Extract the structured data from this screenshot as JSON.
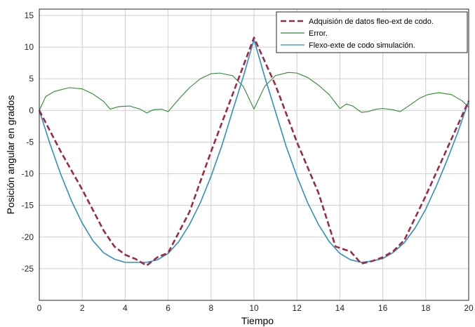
{
  "chart_data": {
    "type": "line",
    "xlabel": "Tiempo",
    "ylabel": "Posición angular en grados",
    "xlim": [
      0,
      20
    ],
    "ylim": [
      -30,
      16
    ],
    "xticks": [
      0,
      2,
      4,
      6,
      8,
      10,
      12,
      14,
      16,
      18,
      20
    ],
    "yticks": [
      15,
      10,
      5,
      0,
      -5,
      -10,
      -15,
      -20,
      -25
    ],
    "grid": true,
    "legend_position": "top-right",
    "series": [
      {
        "name": "Adquisión de datos fleo-ext de codo.",
        "color": "#9b2a4a",
        "style": "dashed",
        "x": [
          0,
          1,
          2,
          3,
          3.5,
          4,
          4.5,
          5,
          5.5,
          6,
          7,
          8,
          9,
          10,
          11,
          12,
          13,
          13.8,
          14.5,
          15,
          15.5,
          16,
          16.5,
          17,
          18,
          19,
          20
        ],
        "y": [
          0,
          -6.5,
          -12.5,
          -19,
          -21.5,
          -22.8,
          -23.5,
          -24.5,
          -23.2,
          -22.5,
          -16,
          -6.5,
          2.5,
          11.5,
          4,
          -5,
          -13,
          -21.5,
          -22.3,
          -24.2,
          -23.8,
          -23.2,
          -22.2,
          -20.5,
          -13.5,
          -6,
          1.5
        ]
      },
      {
        "name": "Error.",
        "color": "#2e8b2e",
        "style": "solid",
        "x": [
          0,
          0.3,
          0.7,
          1.4,
          2,
          2.5,
          3,
          3.3,
          3.7,
          4.2,
          4.7,
          5,
          5.3,
          5.7,
          6,
          6.5,
          7,
          7.5,
          8,
          8.4,
          9,
          9.5,
          10,
          10.5,
          11,
          11.6,
          12,
          12.5,
          13,
          13.5,
          14,
          14.3,
          14.6,
          15,
          15.3,
          15.7,
          16,
          16.5,
          16.8,
          17.2,
          17.7,
          18.1,
          18.6,
          19.2,
          19.7,
          20
        ],
        "y": [
          0,
          2.2,
          3,
          3.6,
          3.4,
          2.6,
          1.4,
          0.2,
          0.6,
          0.7,
          0.2,
          -0.4,
          0.1,
          0.2,
          -0.2,
          1.8,
          3.6,
          5,
          5.8,
          5.9,
          5.5,
          3.8,
          0.2,
          3.8,
          5.5,
          6,
          5.9,
          5.2,
          4,
          2.5,
          0.3,
          1,
          0.7,
          -0.3,
          -0.2,
          0.2,
          0.3,
          0.1,
          -0.2,
          0.7,
          1.9,
          2.5,
          2.8,
          2.5,
          1.5,
          0.5
        ]
      },
      {
        "name": "Flexo-exte de codo simulación.",
        "color": "#2f8fc0",
        "style": "solid",
        "x": [
          0,
          0.5,
          1,
          1.5,
          2,
          2.5,
          3,
          3.5,
          4,
          4.5,
          5,
          5.5,
          6,
          6.5,
          7,
          7.5,
          8,
          8.5,
          9,
          9.5,
          10,
          10.5,
          11,
          11.5,
          12,
          12.5,
          13,
          13.5,
          14,
          14.5,
          15,
          15.5,
          16,
          16.5,
          17,
          17.5,
          18,
          18.5,
          19,
          19.5,
          20
        ],
        "y": [
          0,
          -5.3,
          -10.1,
          -14.3,
          -17.8,
          -20.6,
          -22.5,
          -23.5,
          -24,
          -24,
          -24,
          -23.6,
          -22.6,
          -20.7,
          -18,
          -14.6,
          -10.4,
          -5.6,
          -0.1,
          5.3,
          11.2,
          5.3,
          -0.2,
          -5.7,
          -10.4,
          -14.6,
          -18,
          -20.7,
          -22.6,
          -23.6,
          -24,
          -23.8,
          -23.4,
          -22.4,
          -20.9,
          -18.6,
          -15.6,
          -11.9,
          -7.8,
          -3.4,
          1.5
        ]
      }
    ]
  }
}
